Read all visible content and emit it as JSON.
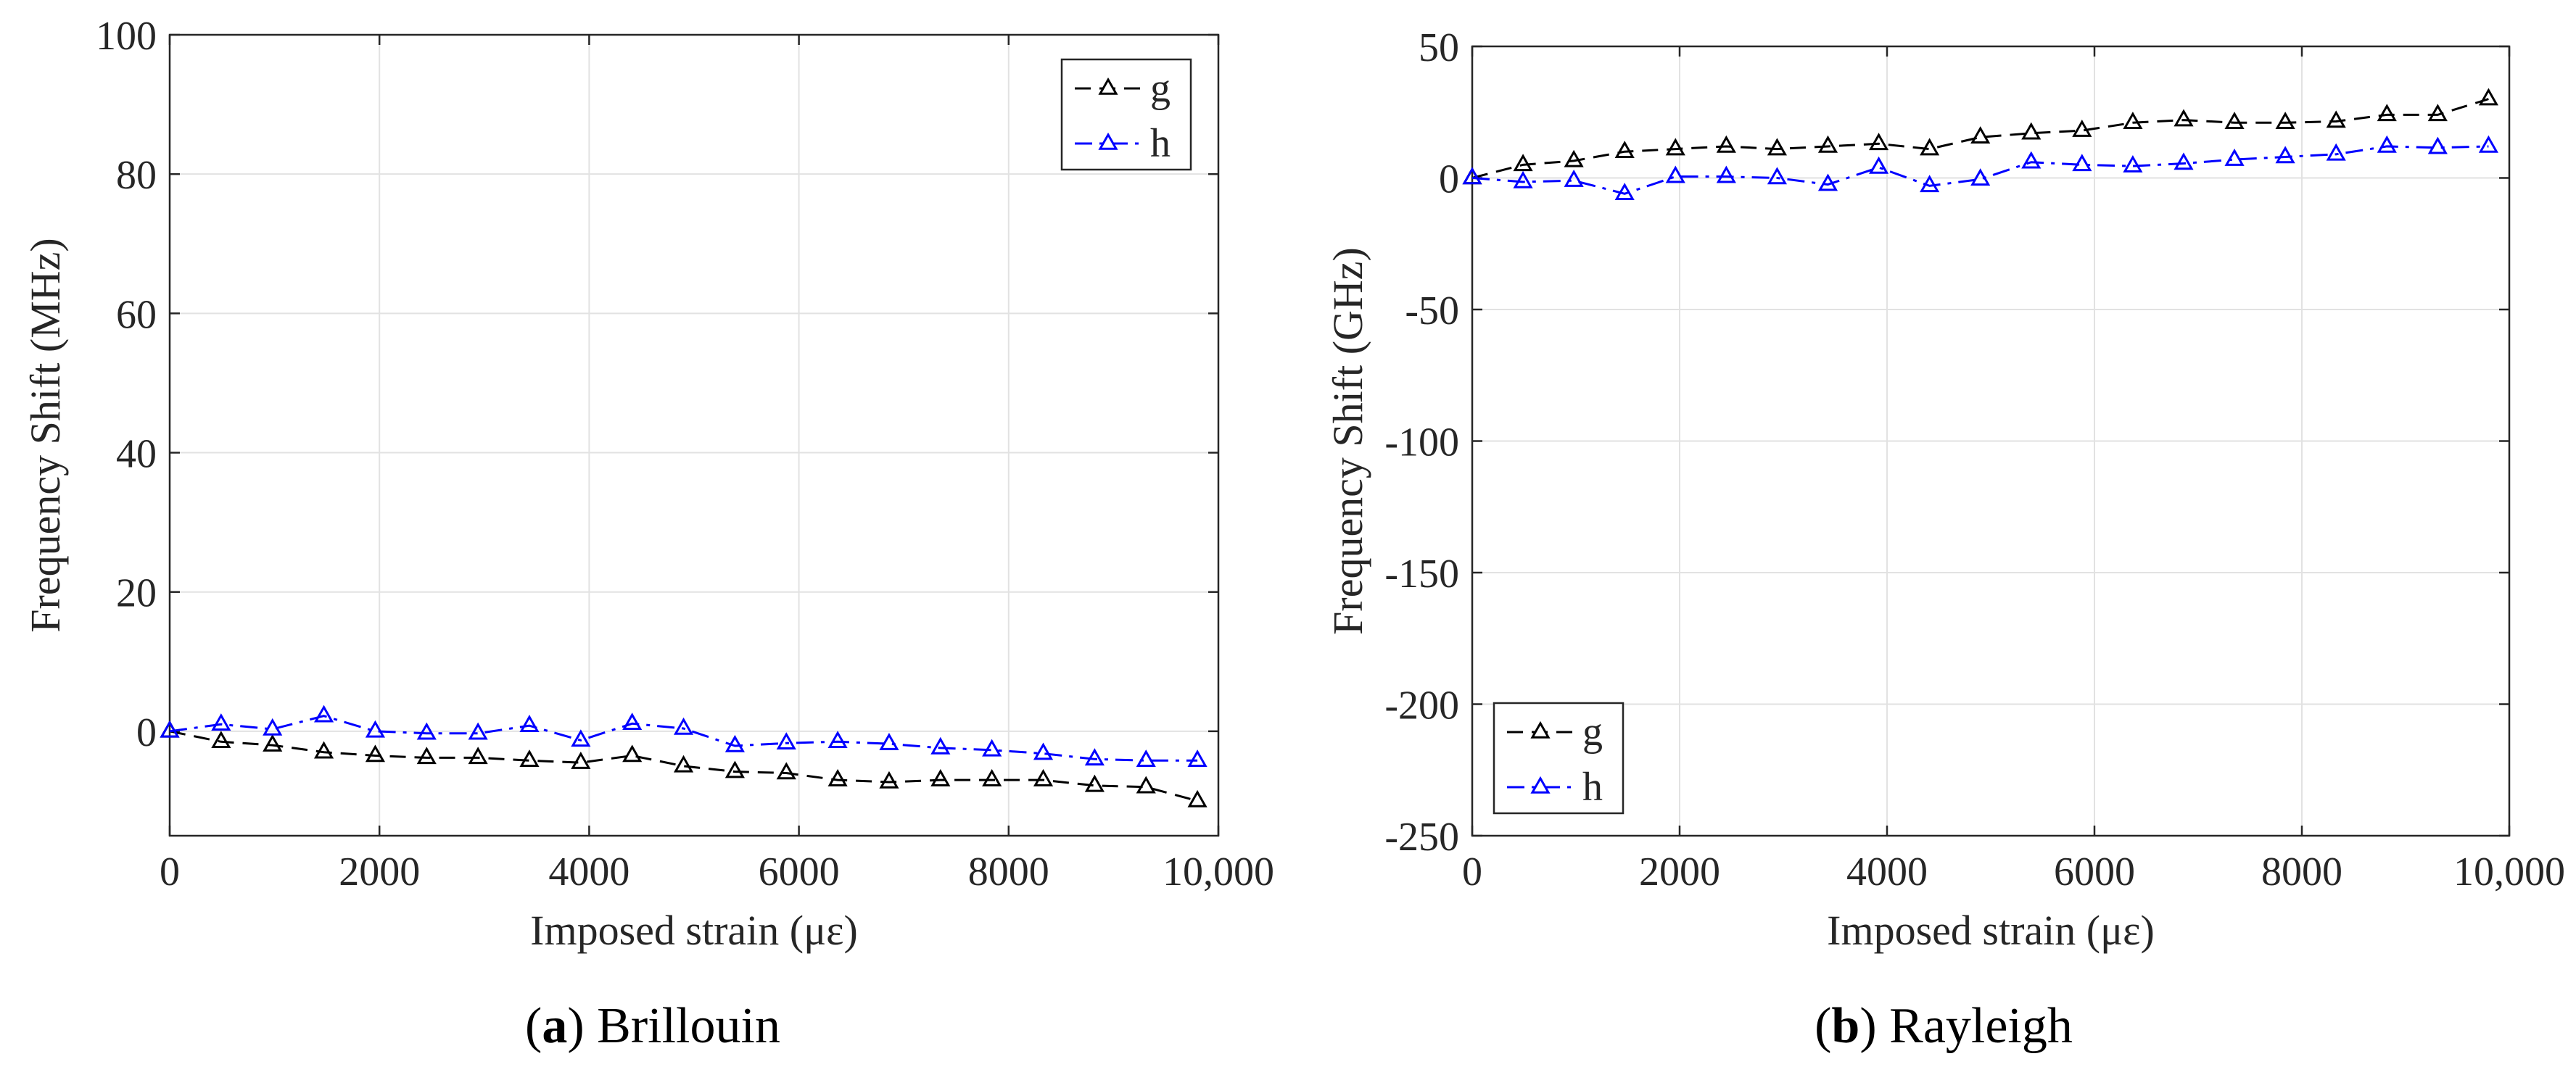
{
  "chart_data": [
    {
      "type": "line",
      "caption_letter": "a",
      "caption_text": "Brillouin",
      "xlabel": "Imposed strain (με)",
      "ylabel": "Frequency Shift (MHz)",
      "xlim": [
        0,
        10000
      ],
      "ylim": [
        -15,
        100
      ],
      "xticks": [
        0,
        2000,
        4000,
        6000,
        8000,
        10000
      ],
      "xtick_labels": [
        "0",
        "2000",
        "4000",
        "6000",
        "8000",
        "10,000"
      ],
      "yticks": [
        0,
        20,
        40,
        60,
        80,
        100
      ],
      "ytick_labels": [
        "0",
        "20",
        "40",
        "60",
        "80",
        "100"
      ],
      "grid": true,
      "legend_position": "top-right",
      "x": [
        0,
        490,
        980,
        1470,
        1960,
        2450,
        2940,
        3430,
        3920,
        4410,
        4900,
        5390,
        5880,
        6370,
        6860,
        7350,
        7840,
        8330,
        8820,
        9310,
        9800
      ],
      "series": [
        {
          "name": "g",
          "color": "#000000",
          "dash": "dashed",
          "values": [
            0,
            -1.5,
            -2,
            -3,
            -3.5,
            -3.8,
            -3.8,
            -4.2,
            -4.5,
            -3.5,
            -5,
            -5.8,
            -6,
            -7,
            -7.3,
            -7,
            -7,
            -7,
            -7.8,
            -8,
            -10
          ]
        },
        {
          "name": "h",
          "color": "#0000ff",
          "dash": "dashdot",
          "values": [
            0,
            1,
            0.3,
            2.2,
            0,
            -0.3,
            -0.3,
            0.8,
            -1.3,
            1.1,
            0.4,
            -2.1,
            -1.7,
            -1.5,
            -1.8,
            -2.4,
            -2.7,
            -3.2,
            -4,
            -4.2,
            -4.2
          ]
        }
      ]
    },
    {
      "type": "line",
      "caption_letter": "b",
      "caption_text": "Rayleigh",
      "xlabel": "Imposed strain (με)",
      "ylabel": "Frequency Shift (GHz)",
      "xlim": [
        0,
        10000
      ],
      "ylim": [
        -250,
        50
      ],
      "xticks": [
        0,
        2000,
        4000,
        6000,
        8000,
        10000
      ],
      "xtick_labels": [
        "0",
        "2000",
        "4000",
        "6000",
        "8000",
        "10,000"
      ],
      "yticks": [
        -250,
        -200,
        -150,
        -100,
        -50,
        0,
        50
      ],
      "ytick_labels": [
        "-250",
        "-200",
        "-150",
        "-100",
        "-50",
        "0",
        "50"
      ],
      "grid": true,
      "legend_position": "bottom-left",
      "x": [
        0,
        490,
        980,
        1470,
        1960,
        2450,
        2940,
        3430,
        3920,
        4410,
        4900,
        5390,
        5880,
        6370,
        6860,
        7350,
        7840,
        8330,
        8820,
        9310,
        9800
      ],
      "series": [
        {
          "name": "g",
          "color": "#000000",
          "dash": "dashed",
          "values": [
            0,
            5,
            6.5,
            10,
            11,
            12,
            11,
            12,
            13,
            11,
            15.5,
            17,
            18,
            21,
            22,
            21,
            21,
            21.5,
            24,
            24,
            30
          ]
        },
        {
          "name": "h",
          "color": "#0000ff",
          "dash": "dashdot",
          "values": [
            0,
            -1.5,
            -1,
            -6,
            0.5,
            0.5,
            0,
            -2.5,
            4,
            -3,
            -0.5,
            6,
            5,
            4.5,
            5.5,
            7,
            8,
            9,
            12,
            11.5,
            12
          ]
        }
      ]
    }
  ]
}
